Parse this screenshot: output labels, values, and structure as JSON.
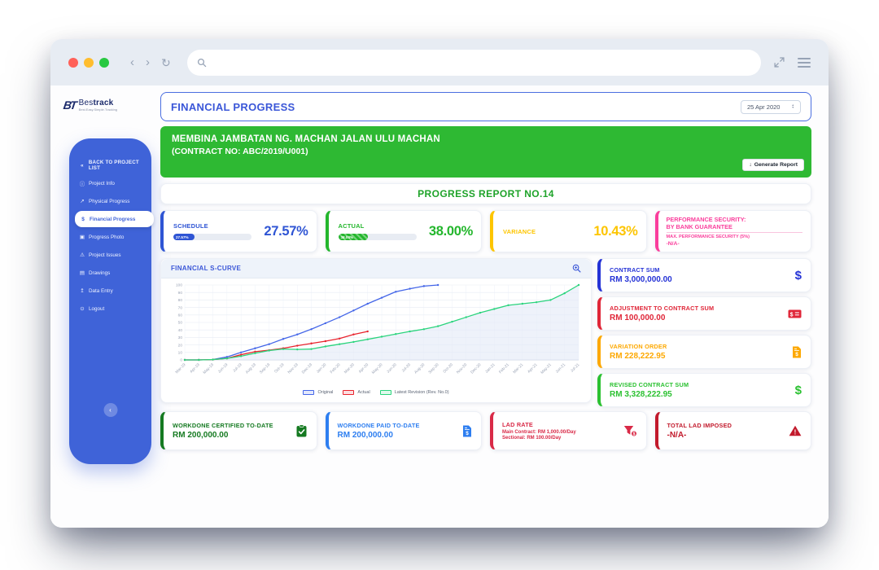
{
  "theme": {
    "sidebar_blue": "#3f63d8",
    "banner_green": "#2eb933",
    "title_blue": "#3b57d8",
    "report_green": "#1fa32a",
    "chrome_bg": "#e7ecf3"
  },
  "browser": {
    "search_placeholder": ""
  },
  "sidebar": {
    "logo": {
      "mark": "BT",
      "brand_light": "Bes",
      "brand_bold": "track",
      "tagline": "Best.Easy.Simple.Tracking"
    },
    "back": "BACK TO PROJECT LIST",
    "items": [
      {
        "label": "Project Info",
        "icon": "info-icon"
      },
      {
        "label": "Physical Progress",
        "icon": "trend-icon"
      },
      {
        "label": "Financial Progress",
        "icon": "dollar-icon",
        "active": true
      },
      {
        "label": "Progress Photo",
        "icon": "photo-icon"
      },
      {
        "label": "Project Issues",
        "icon": "warning-icon"
      },
      {
        "label": "Drawings",
        "icon": "drawings-icon"
      },
      {
        "label": "Data Entry",
        "icon": "upload-icon"
      },
      {
        "label": "Logout",
        "icon": "power-icon"
      }
    ]
  },
  "header": {
    "title": "FINANCIAL PROGRESS",
    "date_selected": "25 Apr 2020"
  },
  "banner": {
    "line1": "MEMBINA JAMBATAN NG. MACHAN JALAN ULU MACHAN",
    "line2": "(CONTRACT NO: ABC/2019/U001)",
    "generate_button": "Generate Report"
  },
  "report": {
    "title": "PROGRESS REPORT NO.14"
  },
  "stats": {
    "schedule": {
      "label": "SCHEDULE",
      "value": "27.57%",
      "bar_width": "27.57%",
      "color": "#2f55d4"
    },
    "actual": {
      "label": "ACTUAL",
      "value": "38.00%",
      "bar_width": "38%",
      "color": "#23b62c"
    },
    "variance": {
      "label": "VARIANCE",
      "value": "10.43%",
      "color": "#fdc500"
    },
    "security": {
      "line1": "PERFORMANCE SECURITY:",
      "line2": "BY BANK GUARANTEE",
      "line3": "MAX. PERFORMANCE SECURITY (5%)",
      "line4": "-N/A-",
      "color": "#fa3e9c"
    }
  },
  "chart": {
    "title": "FINANCIAL S-CURVE",
    "zoom_icon": "magnifier-plus-icon"
  },
  "chart_data": {
    "type": "line",
    "title": "FINANCIAL S-CURVE",
    "ylim": [
      0,
      100
    ],
    "ytick": 10,
    "grid": true,
    "legend_position": "bottom",
    "categories": [
      "Mar-19",
      "Apr-19",
      "May-19",
      "Jun-19",
      "Jul-19",
      "Aug-19",
      "Sep-19",
      "Oct-19",
      "Nov-19",
      "Dec-19",
      "Jan-20",
      "Feb-20",
      "Mar-20",
      "Apr-20",
      "May-20",
      "Jun-20",
      "Jul-20",
      "Aug-20",
      "Sep-20",
      "Oct-20",
      "Nov-20",
      "Dec-20",
      "Jan-21",
      "Feb-21",
      "Mar-21",
      "Apr-21",
      "May-21",
      "Jun-21",
      "Jul-21"
    ],
    "series": [
      {
        "name": "Original",
        "color": "#4466e8",
        "values": [
          0,
          0,
          0.5,
          4,
          10,
          15.5,
          21,
          28,
          34,
          41,
          49,
          57,
          66,
          75,
          83,
          91,
          95,
          98.5,
          100
        ]
      },
      {
        "name": "Actual",
        "color": "#e8232d",
        "values": [
          0,
          0,
          0.5,
          2,
          7,
          11,
          13,
          15.5,
          19,
          22,
          25,
          28.5,
          34,
          38
        ]
      },
      {
        "name": "Latest Revision (Rev. No.0)",
        "color": "#2bd47d",
        "fill": true,
        "values": [
          0,
          0,
          0.5,
          2,
          5,
          9,
          12.5,
          14.5,
          14,
          14.5,
          18,
          21,
          24,
          27.5,
          31,
          34.5,
          38,
          41,
          45,
          51,
          57,
          63,
          68,
          73,
          75,
          77,
          80,
          89,
          100
        ]
      }
    ]
  },
  "summary": [
    {
      "label": "CONTRACT SUM",
      "value": "RM 3,000,000.00",
      "color": "#2533d6",
      "icon": "dollar-sign-icon"
    },
    {
      "label": "ADJUSTMENT TO CONTRACT SUM",
      "value": "RM 100,000.00",
      "color": "#e02638",
      "icon": "money-check-icon"
    },
    {
      "label": "VARIATION ORDER",
      "value": "RM 228,222.95",
      "color": "#fda800",
      "icon": "file-invoice-dollar-icon"
    },
    {
      "label": "REVISED CONTRACT SUM",
      "value": "RM 3,328,222.95",
      "color": "#2bc131",
      "icon": "dollar-sign-icon"
    }
  ],
  "bottom": [
    {
      "label": "WORKDONE CERTIFIED TO-DATE",
      "value": "RM 200,000.00",
      "color": "#157a21",
      "icon": "clipboard-check-icon"
    },
    {
      "label": "WORKDONE PAID TO-DATE",
      "value": "RM 200,000.00",
      "color": "#2d7ef0",
      "icon": "file-invoice-dollar-icon"
    },
    {
      "label": "LAD RATE",
      "line1": "Main Contract: RM 1,000.00/Day",
      "line2": "Sectional: RM 100.00/Day",
      "color": "#d92a47",
      "icon": "funnel-dollar-icon"
    },
    {
      "label": "TOTAL LAD IMPOSED",
      "value": "-N/A-",
      "color": "#c21a2c",
      "icon": "warning-triangle-icon"
    }
  ]
}
